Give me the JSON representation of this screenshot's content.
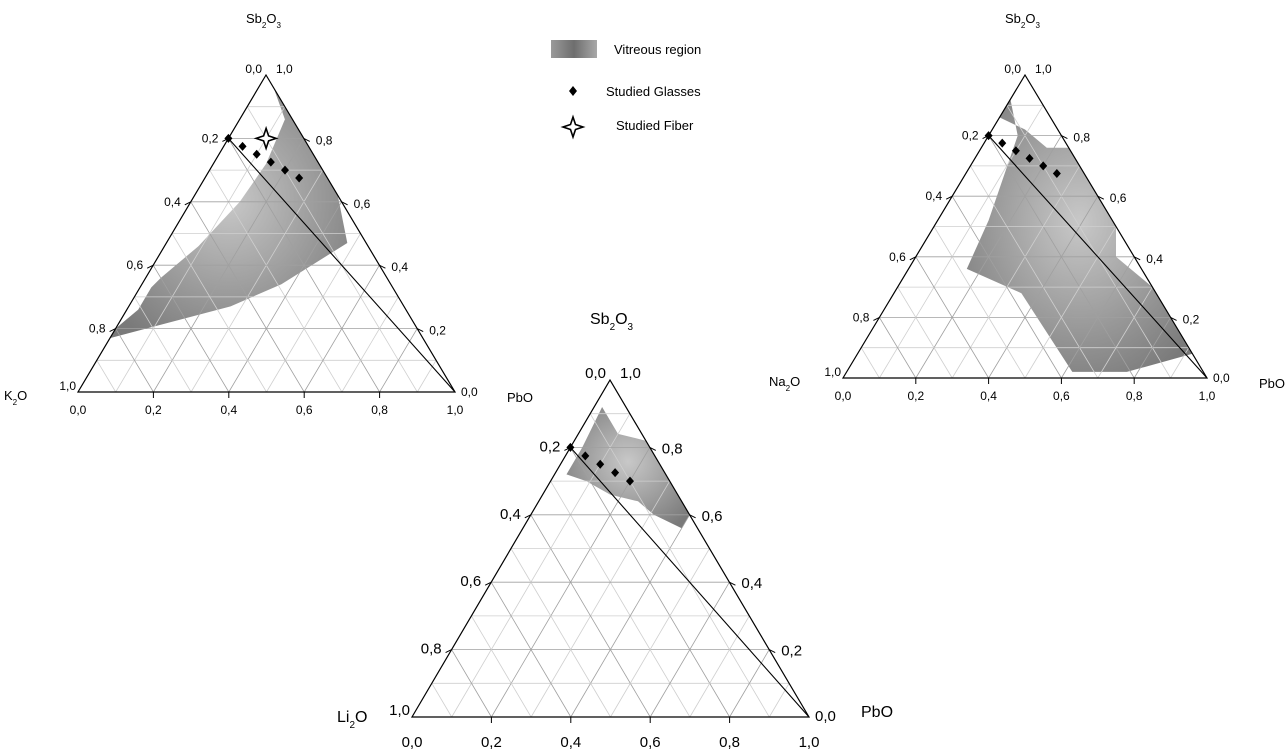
{
  "legend": [
    {
      "label": "Vitreous region",
      "symbol": "gray-gradient-patch"
    },
    {
      "label": "Studied Glasses",
      "symbol": "black-diamond-marker"
    },
    {
      "label": "Studied Fiber",
      "symbol": "four-point-star-marker"
    }
  ],
  "colors": {
    "region": "#8c8c8c",
    "region_light": "#c8c8c8",
    "grid": "#bdbdbd",
    "axis": "#000000"
  },
  "chart_data": [
    {
      "type": "ternary",
      "top": {
        "name": "Sb",
        "sub1": "2",
        "mid": "O",
        "sub2": "3"
      },
      "left": {
        "name": "K",
        "sub1": "2",
        "mid": "O"
      },
      "right": "PbO",
      "ticks": [
        "0,0",
        "0,2",
        "0,4",
        "0,6",
        "0,8",
        "1,0"
      ],
      "vitreous_region": [
        [
          0.96,
          0,
          0.04
        ],
        [
          0.86,
          0.02,
          0.12
        ],
        [
          0.72,
          0.14,
          0.14
        ],
        [
          0.6,
          0.27,
          0.13
        ],
        [
          0.46,
          0.45,
          0.09
        ],
        [
          0.36,
          0.6,
          0.04
        ],
        [
          0.33,
          0.64,
          0.03
        ],
        [
          0.26,
          0.71,
          0.03
        ],
        [
          0.2,
          0.8,
          0.0
        ],
        [
          0.17,
          0.83,
          0.0
        ],
        [
          0.27,
          0.46,
          0.27
        ],
        [
          0.34,
          0.29,
          0.37
        ],
        [
          0.47,
          0.05,
          0.48
        ],
        [
          0.62,
          0.0,
          0.38
        ],
        [
          0.8,
          0.0,
          0.2
        ],
        [
          0.9,
          0.0,
          0.1
        ],
        [
          0.96,
          0,
          0.04
        ]
      ],
      "studied_glasses": [
        [
          0.8,
          0.2,
          0.0
        ],
        [
          0.775,
          0.175,
          0.05
        ],
        [
          0.75,
          0.15,
          0.1
        ],
        [
          0.725,
          0.125,
          0.15
        ],
        [
          0.7,
          0.1,
          0.2
        ],
        [
          0.675,
          0.075,
          0.25
        ]
      ],
      "studied_fiber": [
        [
          0.8,
          0.1,
          0.1
        ]
      ],
      "line": [
        [
          0.8,
          0.2,
          0.0
        ],
        [
          0.0,
          0.0,
          1.0
        ]
      ]
    },
    {
      "type": "ternary",
      "top": {
        "name": "Sb",
        "sub1": "2",
        "mid": "O",
        "sub2": "3"
      },
      "left": {
        "name": "Li",
        "sub1": "2",
        "mid": "O"
      },
      "right": "PbO",
      "ticks": [
        "0,0",
        "0,2",
        "0,4",
        "0,6",
        "0,8",
        "1,0"
      ],
      "vitreous_region": [
        [
          0.92,
          0.06,
          0.02
        ],
        [
          0.84,
          0.06,
          0.1
        ],
        [
          0.82,
          0.0,
          0.18
        ],
        [
          0.75,
          0.0,
          0.25
        ],
        [
          0.7,
          0.0,
          0.3
        ],
        [
          0.6,
          0.0,
          0.4
        ],
        [
          0.56,
          0.04,
          0.4
        ],
        [
          0.6,
          0.09,
          0.31
        ],
        [
          0.64,
          0.11,
          0.25
        ],
        [
          0.66,
          0.17,
          0.17
        ],
        [
          0.7,
          0.21,
          0.09
        ],
        [
          0.72,
          0.25,
          0.03
        ],
        [
          0.8,
          0.17,
          0.03
        ],
        [
          0.92,
          0.06,
          0.02
        ]
      ],
      "studied_glasses": [
        [
          0.8,
          0.2,
          0.0
        ],
        [
          0.775,
          0.175,
          0.05
        ],
        [
          0.75,
          0.15,
          0.1
        ],
        [
          0.725,
          0.125,
          0.15
        ],
        [
          0.7,
          0.1,
          0.2
        ]
      ],
      "line": [
        [
          0.8,
          0.2,
          0.0
        ],
        [
          0.0,
          0.0,
          1.0
        ]
      ]
    },
    {
      "type": "ternary",
      "top": {
        "name": "Sb",
        "sub1": "2",
        "mid": "O",
        "sub2": "3"
      },
      "left": {
        "name": "Na",
        "sub1": "2",
        "mid": "O"
      },
      "right": "PbO",
      "ticks": [
        "0,0",
        "0,2",
        "0,4",
        "0,6",
        "0,8",
        "1,0"
      ],
      "vitreous_region": [
        [
          0.92,
          0.08,
          0.0
        ],
        [
          0.86,
          0.14,
          0.0
        ],
        [
          0.82,
          0.09,
          0.09
        ],
        [
          0.76,
          0.06,
          0.18
        ],
        [
          0.76,
          0.0,
          0.24
        ],
        [
          0.66,
          0.0,
          0.34
        ],
        [
          0.5,
          0.0,
          0.5
        ],
        [
          0.4,
          0.05,
          0.55
        ],
        [
          0.3,
          0.0,
          0.7
        ],
        [
          0.08,
          0.0,
          0.92
        ],
        [
          0.02,
          0.21,
          0.77
        ],
        [
          0.02,
          0.36,
          0.62
        ],
        [
          0.28,
          0.37,
          0.35
        ],
        [
          0.36,
          0.48,
          0.16
        ],
        [
          0.52,
          0.34,
          0.14
        ],
        [
          0.8,
          0.12,
          0.08
        ],
        [
          0.92,
          0.08,
          0.0
        ]
      ],
      "studied_glasses": [
        [
          0.8,
          0.2,
          0.0
        ],
        [
          0.775,
          0.175,
          0.05
        ],
        [
          0.75,
          0.15,
          0.1
        ],
        [
          0.725,
          0.125,
          0.15
        ],
        [
          0.7,
          0.1,
          0.2
        ],
        [
          0.675,
          0.075,
          0.25
        ]
      ],
      "line": [
        [
          0.8,
          0.2,
          0.0
        ],
        [
          0.0,
          0.0,
          1.0
        ]
      ]
    }
  ]
}
